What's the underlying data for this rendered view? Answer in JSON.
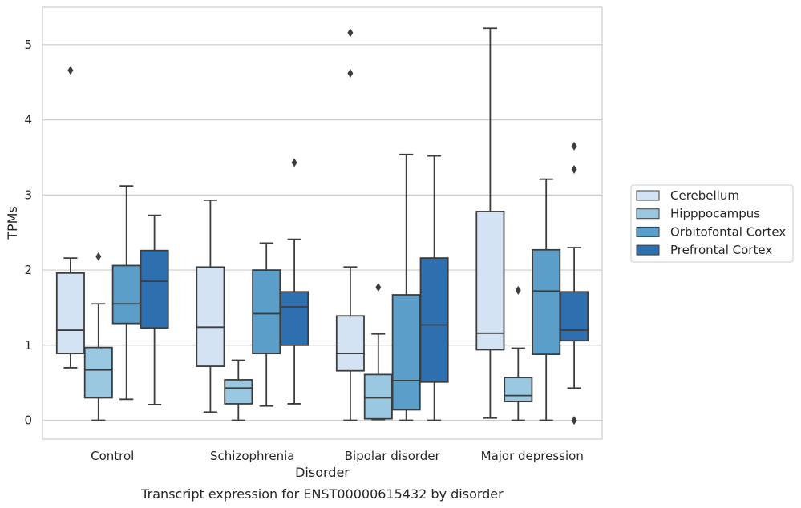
{
  "chart_data": {
    "type": "box",
    "xlabel": "Disorder",
    "ylabel": "TPMs",
    "caption": "Transcript expression for ENST00000615432 by disorder",
    "categories": [
      "Control",
      "Schizophrenia",
      "Bipolar disorder",
      "Major depression"
    ],
    "ylim": [
      -0.25,
      5.5
    ],
    "yticks": [
      0,
      1,
      2,
      3,
      4,
      5
    ],
    "grid": "horizontal",
    "legend_position": "right",
    "series": [
      {
        "name": "Cerebellum",
        "color": "#d3e3f3",
        "boxes": [
          {
            "whislo": 0.7,
            "q1": 0.89,
            "med": 1.2,
            "q3": 1.96,
            "whishi": 2.16,
            "fliers": [
              4.66
            ]
          },
          {
            "whislo": 0.11,
            "q1": 0.72,
            "med": 1.24,
            "q3": 2.04,
            "whishi": 2.93,
            "fliers": []
          },
          {
            "whislo": 0.0,
            "q1": 0.66,
            "med": 0.89,
            "q3": 1.39,
            "whishi": 2.04,
            "fliers": [
              5.16,
              4.62
            ]
          },
          {
            "whislo": 0.03,
            "q1": 0.94,
            "med": 1.16,
            "q3": 2.78,
            "whishi": 5.22,
            "fliers": []
          }
        ]
      },
      {
        "name": "Hipppocampus",
        "color": "#9ac8e0",
        "boxes": [
          {
            "whislo": 0.0,
            "q1": 0.3,
            "med": 0.67,
            "q3": 0.97,
            "whishi": 1.55,
            "fliers": [
              2.18
            ]
          },
          {
            "whislo": 0.0,
            "q1": 0.22,
            "med": 0.43,
            "q3": 0.54,
            "whishi": 0.8,
            "fliers": []
          },
          {
            "whislo": 0.01,
            "q1": 0.02,
            "med": 0.3,
            "q3": 0.61,
            "whishi": 1.15,
            "fliers": [
              1.77
            ]
          },
          {
            "whislo": 0.0,
            "q1": 0.25,
            "med": 0.33,
            "q3": 0.57,
            "whishi": 0.96,
            "fliers": [
              1.73
            ]
          }
        ]
      },
      {
        "name": "Orbitofontal Cortex",
        "color": "#5a9ec9",
        "boxes": [
          {
            "whislo": 0.28,
            "q1": 1.29,
            "med": 1.55,
            "q3": 2.06,
            "whishi": 3.12,
            "fliers": []
          },
          {
            "whislo": 0.19,
            "q1": 0.89,
            "med": 1.42,
            "q3": 2.0,
            "whishi": 2.36,
            "fliers": []
          },
          {
            "whislo": 0.0,
            "q1": 0.14,
            "med": 0.53,
            "q3": 1.67,
            "whishi": 3.54,
            "fliers": []
          },
          {
            "whislo": 0.0,
            "q1": 0.88,
            "med": 1.72,
            "q3": 2.27,
            "whishi": 3.21,
            "fliers": []
          }
        ]
      },
      {
        "name": "Prefrontal Cortex",
        "color": "#2e6faf",
        "boxes": [
          {
            "whislo": 0.21,
            "q1": 1.23,
            "med": 1.85,
            "q3": 2.26,
            "whishi": 2.73,
            "fliers": []
          },
          {
            "whislo": 0.22,
            "q1": 1.0,
            "med": 1.51,
            "q3": 1.71,
            "whishi": 2.41,
            "fliers": [
              3.43
            ]
          },
          {
            "whislo": 0.0,
            "q1": 0.51,
            "med": 1.27,
            "q3": 2.16,
            "whishi": 3.52,
            "fliers": []
          },
          {
            "whislo": 0.43,
            "q1": 1.06,
            "med": 1.2,
            "q3": 1.71,
            "whishi": 2.3,
            "fliers": [
              3.65,
              3.34,
              0.0
            ]
          }
        ]
      }
    ]
  }
}
